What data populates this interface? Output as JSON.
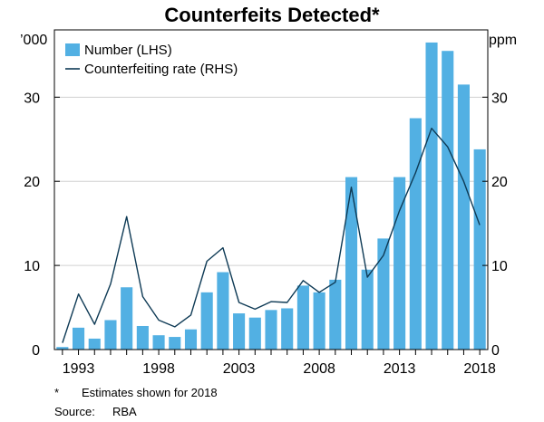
{
  "chart_data": {
    "type": "bar+line",
    "title": "Counterfeits Detected*",
    "left_unit": "’000",
    "right_unit": "ppm",
    "ylim": [
      0,
      38
    ],
    "yticks": [
      "0",
      "10",
      "20",
      "30"
    ],
    "ytick_values": [
      0,
      10,
      20,
      30
    ],
    "xtick_labels": [
      "1993",
      "1998",
      "2003",
      "2008",
      "2013",
      "2018"
    ],
    "categories": [
      1992,
      1993,
      1994,
      1995,
      1996,
      1997,
      1998,
      1999,
      2000,
      2001,
      2002,
      2003,
      2004,
      2005,
      2006,
      2007,
      2008,
      2009,
      2010,
      2011,
      2012,
      2013,
      2014,
      2015,
      2016,
      2017,
      2018
    ],
    "series": [
      {
        "name": "Number (LHS)",
        "kind": "bar",
        "color": "#52b0e3",
        "values": [
          0.3,
          2.6,
          1.3,
          3.5,
          7.4,
          2.8,
          1.7,
          1.5,
          2.4,
          6.8,
          9.2,
          4.3,
          3.8,
          4.7,
          4.9,
          7.6,
          6.8,
          8.3,
          20.5,
          9.5,
          13.2,
          20.5,
          27.5,
          36.5,
          35.5,
          31.5,
          23.8
        ]
      },
      {
        "name": "Counterfeiting rate (RHS)",
        "kind": "line",
        "color": "#0e3a55",
        "values": [
          0.8,
          6.6,
          3.0,
          7.8,
          15.8,
          6.3,
          3.5,
          2.7,
          4.1,
          10.5,
          12.1,
          5.6,
          4.8,
          5.7,
          5.6,
          8.2,
          6.8,
          8.0,
          19.3,
          8.6,
          11.2,
          16.5,
          21.0,
          26.3,
          24.1,
          20.0,
          14.8
        ]
      }
    ]
  },
  "footnote": {
    "mark": "*",
    "text": "Estimates shown for 2018"
  },
  "source": {
    "label": "Source:",
    "text": "RBA"
  }
}
